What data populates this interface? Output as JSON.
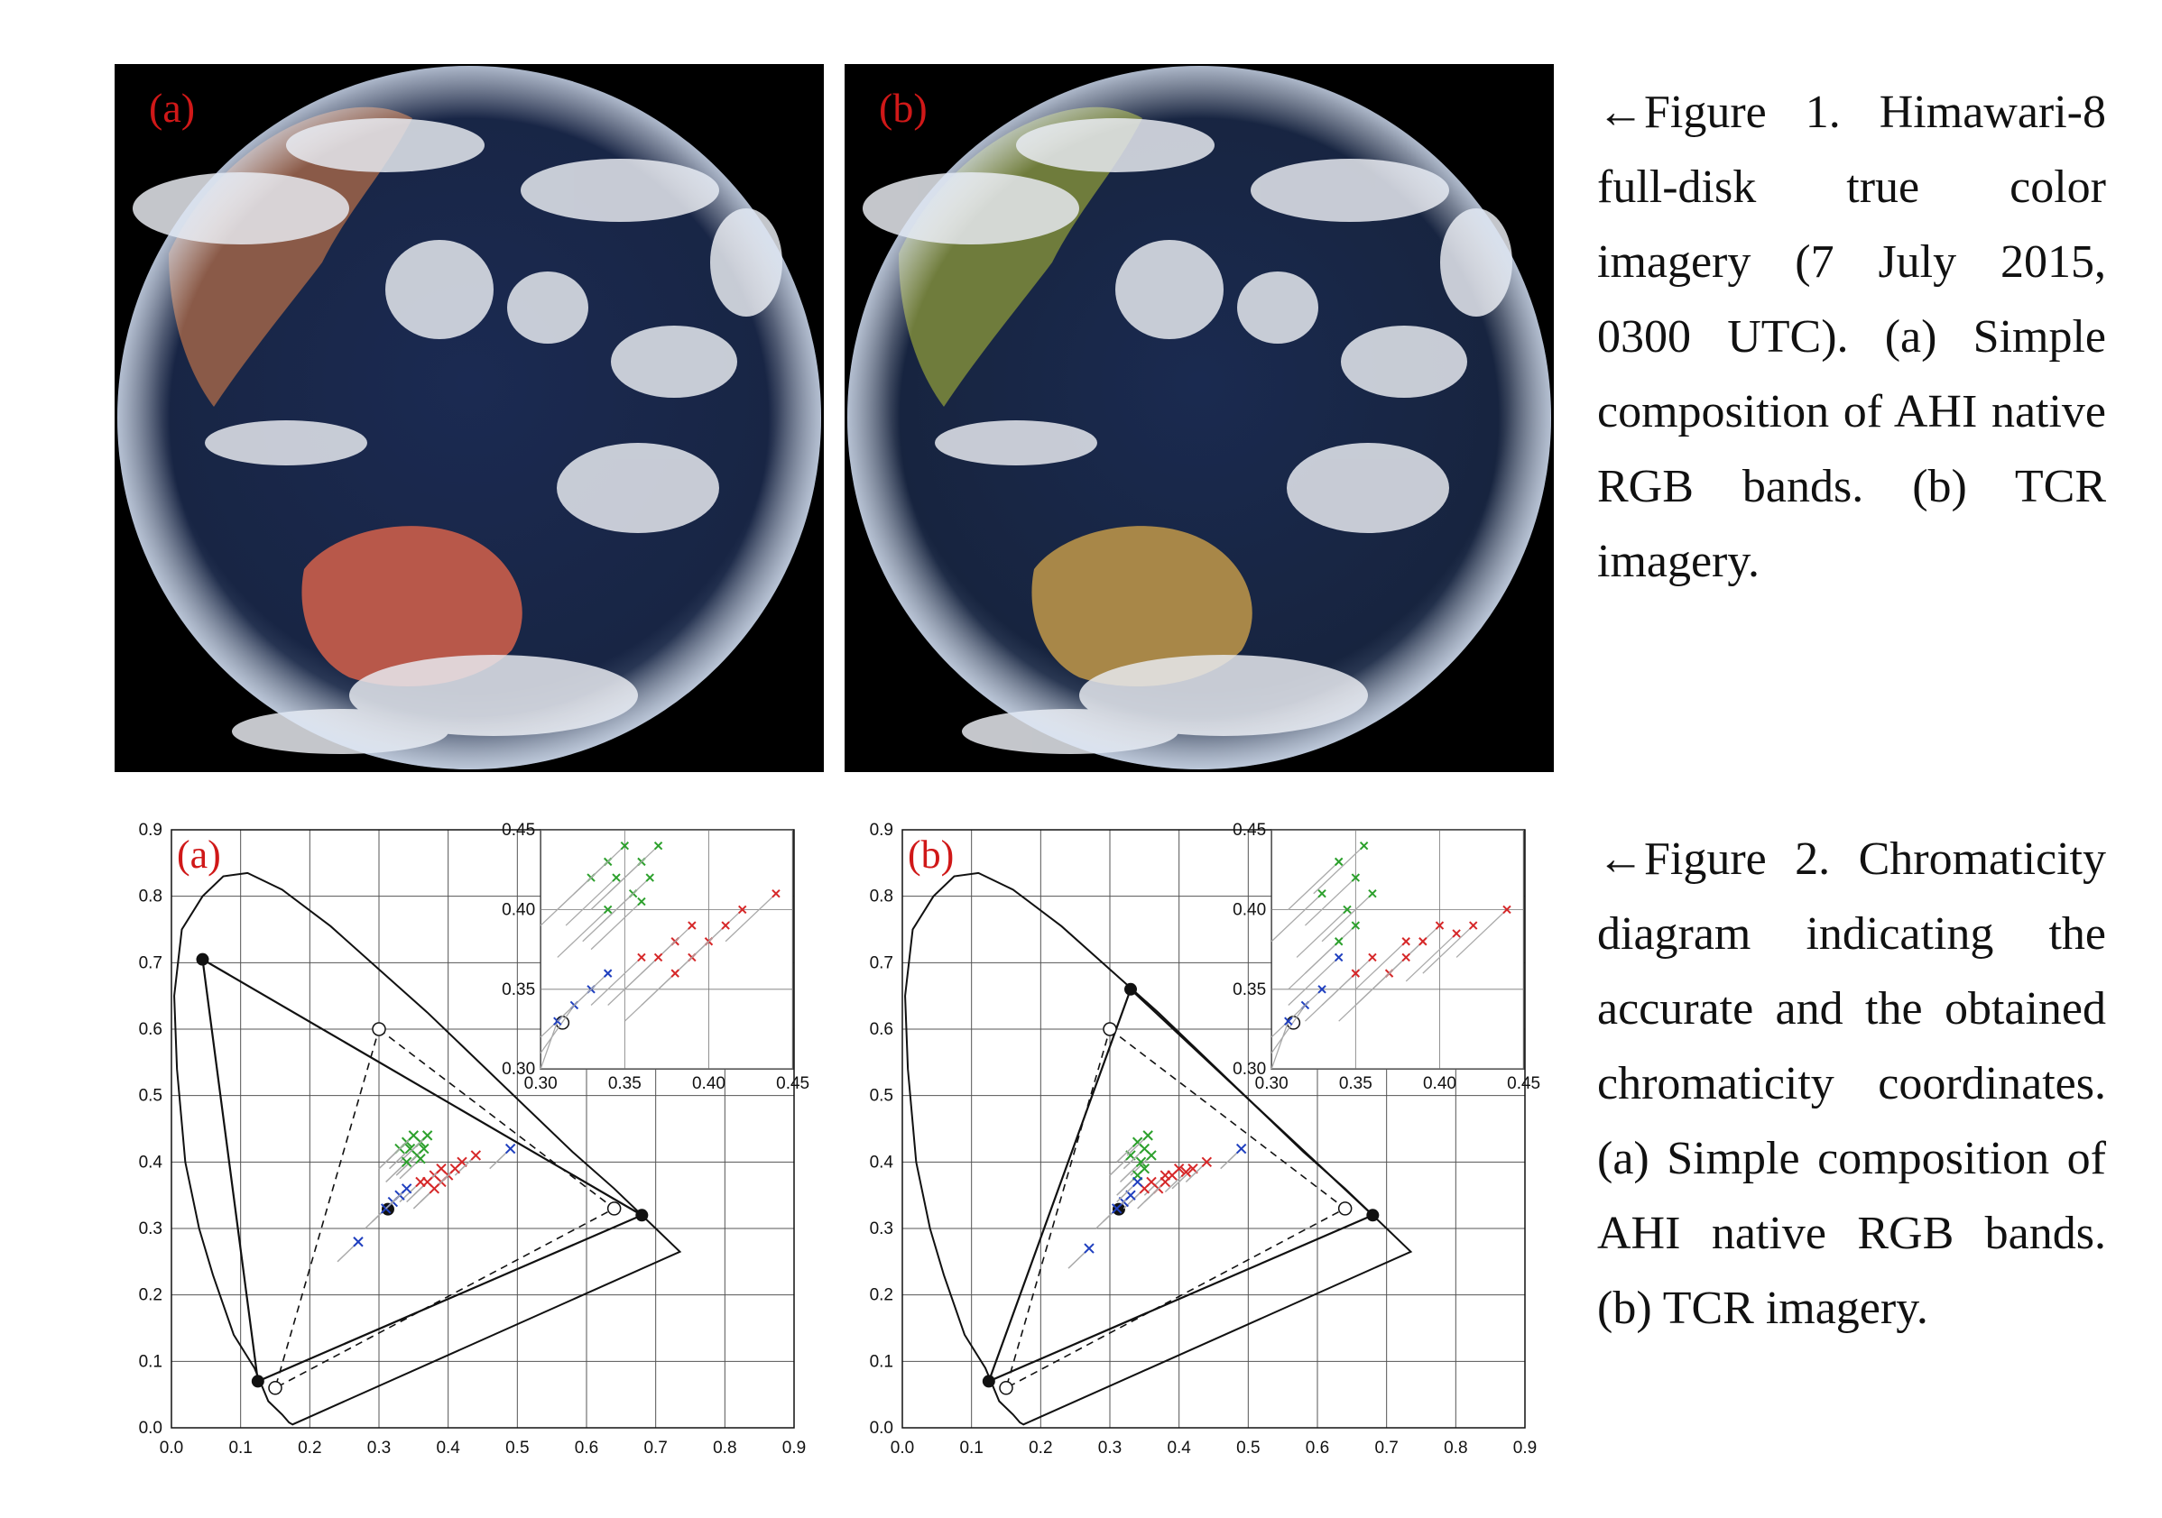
{
  "figure1": {
    "caption": "←Figure 1. Himawari-8 full-disk true color imagery (7 July 2015, 0300 UTC). (a) Simple composition of AHI native RGB bands. (b) TCR imagery.",
    "panels": [
      {
        "label": "(a)",
        "land_color": "#b86a52",
        "australia_color": "#b8584a",
        "asia_color": "#8a5a48"
      },
      {
        "label": "(b)",
        "land_color": "#8c8a3c",
        "australia_color": "#a88748",
        "asia_color": "#6f7c3c"
      }
    ]
  },
  "figure2": {
    "caption": "←Figure 2. Chromaticity diagram indicating the accurate and the obtained chromaticity coordinates. (a) Simple composition of AHI native RGB bands. (b) TCR imagery."
  },
  "chart_data": [
    {
      "type": "scatter",
      "panel_label": "(a)",
      "title": "",
      "xlabel": "",
      "ylabel": "",
      "xlim": [
        0.0,
        0.9
      ],
      "ylim": [
        0.0,
        0.9
      ],
      "xticks": [
        "0.0",
        "0.1",
        "0.2",
        "0.3",
        "0.4",
        "0.5",
        "0.6",
        "0.7",
        "0.8",
        "0.9"
      ],
      "yticks": [
        "0.0",
        "0.1",
        "0.2",
        "0.3",
        "0.4",
        "0.5",
        "0.6",
        "0.7",
        "0.8",
        "0.9"
      ],
      "grid": true,
      "spectral_locus": [
        [
          0.175,
          0.005
        ],
        [
          0.17,
          0.008
        ],
        [
          0.16,
          0.02
        ],
        [
          0.14,
          0.04
        ],
        [
          0.12,
          0.09
        ],
        [
          0.09,
          0.14
        ],
        [
          0.06,
          0.23
        ],
        [
          0.04,
          0.3
        ],
        [
          0.02,
          0.4
        ],
        [
          0.008,
          0.54
        ],
        [
          0.004,
          0.65
        ],
        [
          0.015,
          0.75
        ],
        [
          0.045,
          0.8
        ],
        [
          0.075,
          0.83
        ],
        [
          0.11,
          0.835
        ],
        [
          0.16,
          0.81
        ],
        [
          0.23,
          0.755
        ],
        [
          0.3,
          0.69
        ],
        [
          0.37,
          0.625
        ],
        [
          0.44,
          0.555
        ],
        [
          0.51,
          0.485
        ],
        [
          0.58,
          0.415
        ],
        [
          0.64,
          0.36
        ],
        [
          0.69,
          0.31
        ],
        [
          0.735,
          0.265
        ]
      ],
      "gamut_filled": [
        [
          0.045,
          0.705
        ],
        [
          0.68,
          0.32
        ],
        [
          0.125,
          0.07
        ]
      ],
      "gamut_open": [
        [
          0.3,
          0.6
        ],
        [
          0.64,
          0.33
        ],
        [
          0.15,
          0.06
        ]
      ],
      "white_point": [
        0.313,
        0.329
      ],
      "inset": {
        "xlim": [
          0.3,
          0.45
        ],
        "ylim": [
          0.3,
          0.45
        ],
        "xticks": [
          "0.30",
          "0.35",
          "0.40",
          "0.45"
        ],
        "yticks": [
          "0.30",
          "0.35",
          "0.40",
          "0.45"
        ]
      },
      "series": [
        {
          "name": "",
          "color": "#2ca02c",
          "points": [
            [
              0.33,
              0.42
            ],
            [
              0.34,
              0.43
            ],
            [
              0.35,
              0.44
            ],
            [
              0.36,
              0.43
            ],
            [
              0.345,
              0.42
            ],
            [
              0.355,
              0.41
            ],
            [
              0.37,
              0.44
            ],
            [
              0.365,
              0.42
            ],
            [
              0.34,
              0.4
            ],
            [
              0.36,
              0.405
            ]
          ]
        },
        {
          "name": "",
          "color": "#d62728",
          "points": [
            [
              0.38,
              0.38
            ],
            [
              0.39,
              0.39
            ],
            [
              0.4,
              0.38
            ],
            [
              0.42,
              0.4
            ],
            [
              0.44,
              0.41
            ],
            [
              0.37,
              0.37
            ],
            [
              0.39,
              0.37
            ],
            [
              0.41,
              0.39
            ],
            [
              0.36,
              0.37
            ],
            [
              0.38,
              0.36
            ]
          ]
        },
        {
          "name": "",
          "color": "#1f3fbf",
          "points": [
            [
              0.32,
              0.34
            ],
            [
              0.33,
              0.35
            ],
            [
              0.31,
              0.33
            ],
            [
              0.34,
              0.36
            ],
            [
              0.27,
              0.28
            ],
            [
              0.49,
              0.42
            ]
          ]
        }
      ]
    },
    {
      "type": "scatter",
      "panel_label": "(b)",
      "title": "",
      "xlabel": "",
      "ylabel": "",
      "xlim": [
        0.0,
        0.9
      ],
      "ylim": [
        0.0,
        0.9
      ],
      "xticks": [
        "0.0",
        "0.1",
        "0.2",
        "0.3",
        "0.4",
        "0.5",
        "0.6",
        "0.7",
        "0.8",
        "0.9"
      ],
      "yticks": [
        "0.0",
        "0.1",
        "0.2",
        "0.3",
        "0.4",
        "0.5",
        "0.6",
        "0.7",
        "0.8",
        "0.9"
      ],
      "grid": true,
      "spectral_locus": [
        [
          0.175,
          0.005
        ],
        [
          0.17,
          0.008
        ],
        [
          0.16,
          0.02
        ],
        [
          0.14,
          0.04
        ],
        [
          0.12,
          0.09
        ],
        [
          0.09,
          0.14
        ],
        [
          0.06,
          0.23
        ],
        [
          0.04,
          0.3
        ],
        [
          0.02,
          0.4
        ],
        [
          0.008,
          0.54
        ],
        [
          0.004,
          0.65
        ],
        [
          0.015,
          0.75
        ],
        [
          0.045,
          0.8
        ],
        [
          0.075,
          0.83
        ],
        [
          0.11,
          0.835
        ],
        [
          0.16,
          0.81
        ],
        [
          0.23,
          0.755
        ],
        [
          0.3,
          0.69
        ],
        [
          0.37,
          0.625
        ],
        [
          0.44,
          0.555
        ],
        [
          0.51,
          0.485
        ],
        [
          0.58,
          0.415
        ],
        [
          0.64,
          0.36
        ],
        [
          0.69,
          0.31
        ],
        [
          0.735,
          0.265
        ]
      ],
      "gamut_filled": [
        [
          0.33,
          0.66
        ],
        [
          0.68,
          0.32
        ],
        [
          0.125,
          0.07
        ]
      ],
      "gamut_open": [
        [
          0.3,
          0.6
        ],
        [
          0.64,
          0.33
        ],
        [
          0.15,
          0.06
        ]
      ],
      "white_point": [
        0.313,
        0.329
      ],
      "inset": {
        "xlim": [
          0.3,
          0.45
        ],
        "ylim": [
          0.3,
          0.45
        ],
        "xticks": [
          "0.30",
          "0.35",
          "0.40",
          "0.45"
        ],
        "yticks": [
          "0.30",
          "0.35",
          "0.40",
          "0.45"
        ]
      },
      "series": [
        {
          "name": "",
          "color": "#2ca02c",
          "points": [
            [
              0.33,
              0.41
            ],
            [
              0.34,
              0.43
            ],
            [
              0.35,
              0.42
            ],
            [
              0.355,
              0.44
            ],
            [
              0.345,
              0.4
            ],
            [
              0.36,
              0.41
            ],
            [
              0.35,
              0.39
            ],
            [
              0.34,
              0.38
            ]
          ]
        },
        {
          "name": "",
          "color": "#d62728",
          "points": [
            [
              0.36,
              0.37
            ],
            [
              0.38,
              0.38
            ],
            [
              0.4,
              0.39
            ],
            [
              0.42,
              0.39
            ],
            [
              0.44,
              0.4
            ],
            [
              0.37,
              0.36
            ],
            [
              0.39,
              0.38
            ],
            [
              0.35,
              0.36
            ],
            [
              0.41,
              0.385
            ],
            [
              0.38,
              0.37
            ]
          ]
        },
        {
          "name": "",
          "color": "#1f3fbf",
          "points": [
            [
              0.32,
              0.34
            ],
            [
              0.33,
              0.35
            ],
            [
              0.31,
              0.33
            ],
            [
              0.34,
              0.37
            ],
            [
              0.27,
              0.27
            ],
            [
              0.49,
              0.42
            ]
          ]
        }
      ]
    }
  ]
}
